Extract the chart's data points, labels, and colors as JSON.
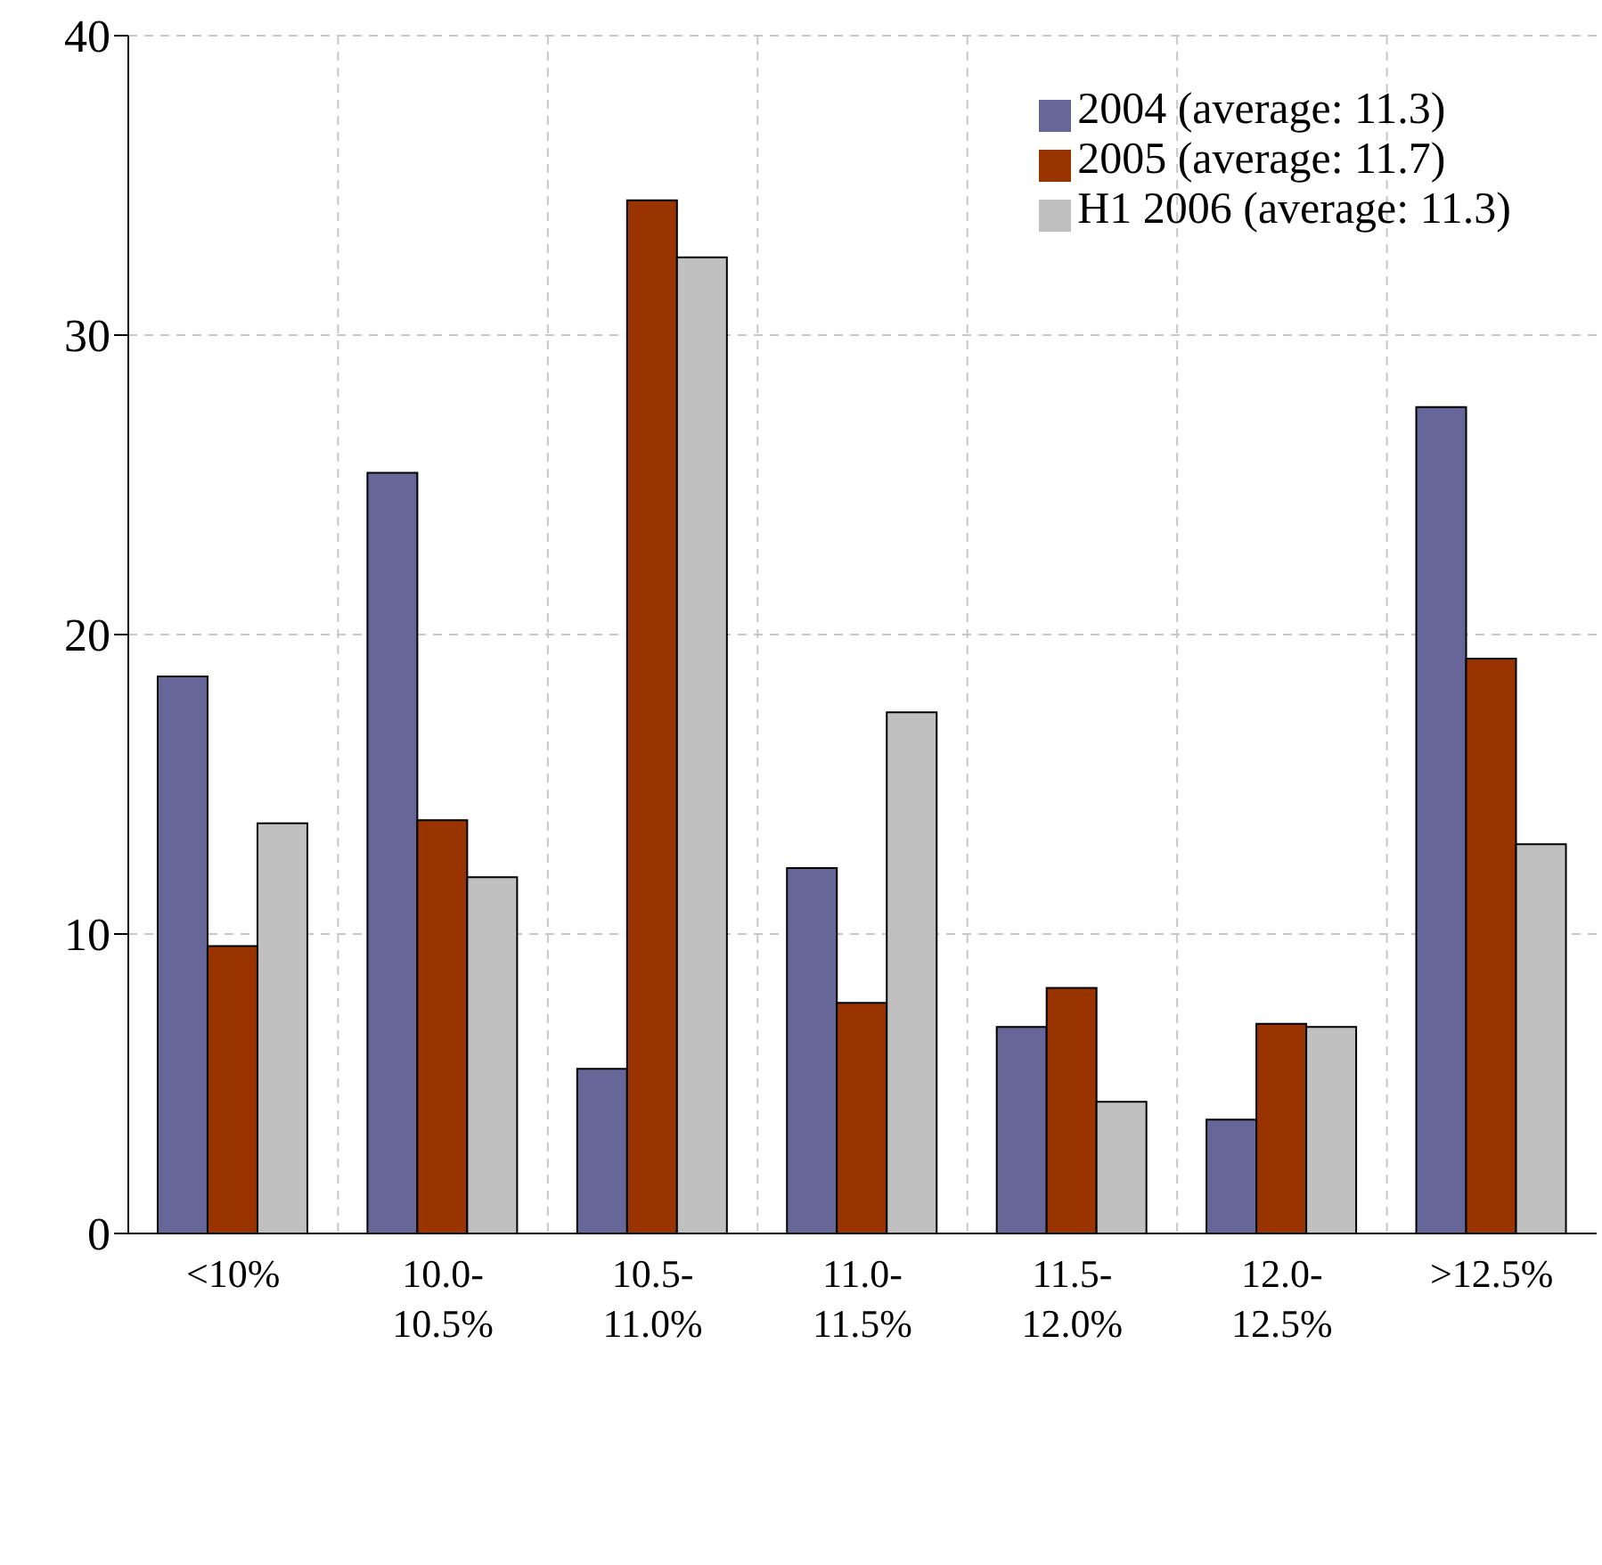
{
  "chart_data": {
    "type": "bar",
    "categories": [
      "<10%",
      "10.0-10.5%",
      "10.5-11.0%",
      "11.0-11.5%",
      "11.5-12.0%",
      "12.0-12.5%",
      ">12.5%"
    ],
    "series": [
      {
        "name": "2004 (average: 11.3)",
        "color": "#666699",
        "values": [
          18.6,
          25.4,
          5.5,
          12.2,
          6.9,
          3.8,
          27.6
        ]
      },
      {
        "name": "2005 (average: 11.7)",
        "color": "#993300",
        "values": [
          9.6,
          13.8,
          34.5,
          7.7,
          8.2,
          7.0,
          19.2
        ]
      },
      {
        "name": "H1 2006 (average: 11.3)",
        "color": "#c0c0c0",
        "values": [
          13.7,
          11.9,
          32.6,
          17.4,
          4.4,
          6.9,
          13.0
        ]
      }
    ],
    "ylim": [
      0,
      40
    ],
    "yticks": [
      0,
      10,
      20,
      30,
      40
    ],
    "grid": true,
    "legend": "top right"
  }
}
